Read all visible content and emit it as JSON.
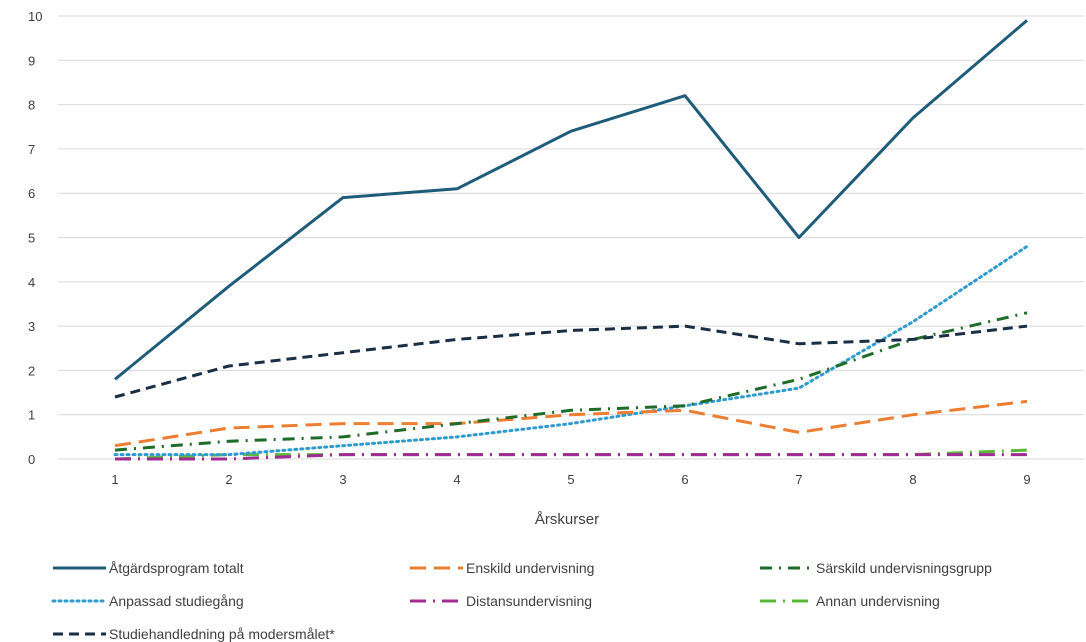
{
  "chart_data": {
    "type": "line",
    "title": "",
    "xlabel": "Årskurser",
    "ylabel": "",
    "categories": [
      "1",
      "2",
      "3",
      "4",
      "5",
      "6",
      "7",
      "8",
      "9"
    ],
    "ylim": [
      0,
      10
    ],
    "yticks": [
      "0",
      "1",
      "2",
      "3",
      "4",
      "5",
      "6",
      "7",
      "8",
      "9",
      "10"
    ],
    "grid": true,
    "legend_position": "bottom",
    "series": [
      {
        "name": "Åtgärdsprogram totalt",
        "values": [
          1.8,
          3.9,
          5.9,
          6.1,
          7.4,
          8.2,
          5.0,
          7.7,
          9.9
        ],
        "color": "#1f5c7a",
        "style": "solid"
      },
      {
        "name": "Enskild undervisning",
        "values": [
          0.3,
          0.7,
          0.8,
          0.8,
          1.0,
          1.1,
          0.6,
          1.0,
          1.3
        ],
        "color": "#ed7d31",
        "style": "longdash"
      },
      {
        "name": "Särskild undervisningsgrupp",
        "values": [
          0.2,
          0.4,
          0.5,
          0.8,
          1.1,
          1.2,
          1.8,
          2.7,
          3.3
        ],
        "color": "#1e6b2a",
        "style": "dashdot"
      },
      {
        "name": "Anpassad studiegång",
        "values": [
          0.1,
          0.1,
          0.3,
          0.5,
          0.8,
          1.2,
          1.6,
          3.1,
          4.8
        ],
        "color": "#2e9ad0",
        "style": "dotted"
      },
      {
        "name": "Distansundervisning",
        "values": [
          0.0,
          0.0,
          0.1,
          0.1,
          0.1,
          0.1,
          0.1,
          0.1,
          0.1
        ],
        "color": "#a02b93",
        "style": "longdashdot"
      },
      {
        "name": "Annan undervisning",
        "values": [
          0.0,
          0.1,
          0.1,
          0.1,
          0.1,
          0.1,
          0.1,
          0.1,
          0.2
        ],
        "color": "#5cb83a",
        "style": "longdashdot"
      },
      {
        "name": "Studiehandledning på modersmålet*",
        "values": [
          1.4,
          2.1,
          2.4,
          2.7,
          2.9,
          3.0,
          2.6,
          2.7,
          3.0
        ],
        "color": "#1a2e44",
        "style": "dashed"
      }
    ]
  }
}
